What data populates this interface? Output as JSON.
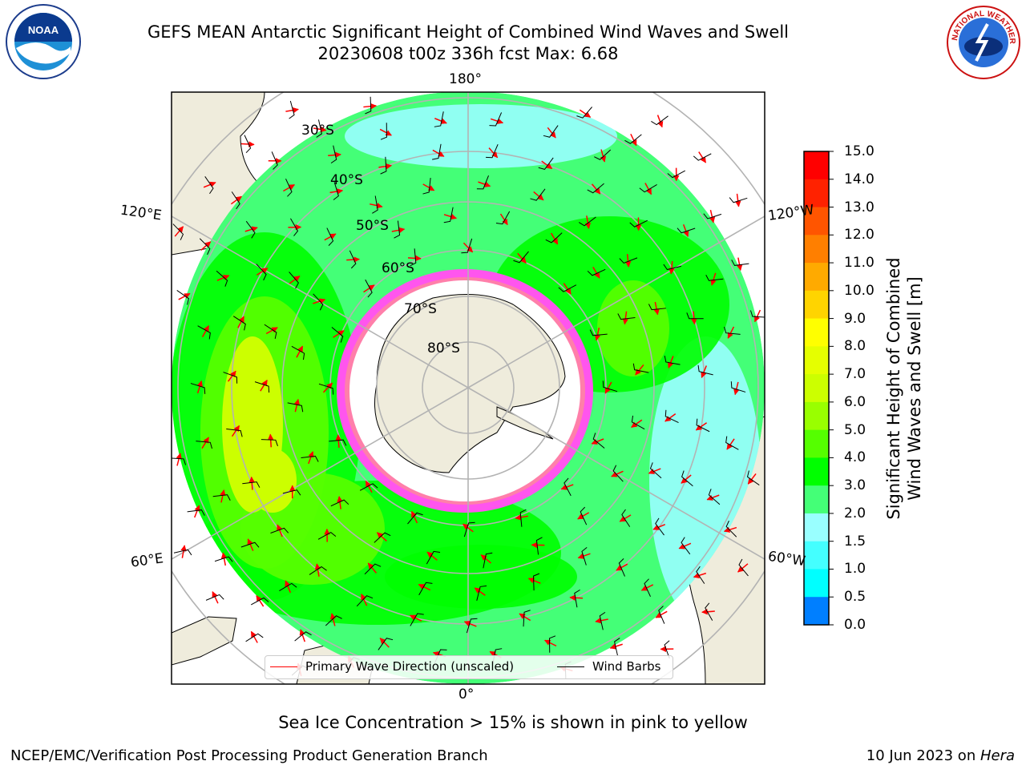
{
  "title": {
    "line1": "GEFS MEAN Antarctic Significant Height of Combined Wind Waves and Swell",
    "line2": "20230608 t00z 336h fcst   Max: 6.68"
  },
  "logos": {
    "left": "NOAA",
    "right": "NATIONAL WEATHER SERVICE"
  },
  "map": {
    "projection": "south-polar-stereographic",
    "lon_labels": {
      "top": "180°",
      "bottom": "0°",
      "left_upper": "120°E",
      "right_upper": "120°W",
      "left_lower": "60°E",
      "right_lower": "60°W"
    },
    "lat_labels": [
      "30°S",
      "40°S",
      "50°S",
      "60°S",
      "70°S",
      "80°S"
    ],
    "colors": {
      "land": "#efecdc",
      "antarctica": "#efecdc",
      "grid": "#b3b3b3",
      "arrows": "#ff0000",
      "barbs": "#000000"
    }
  },
  "legend": {
    "wave_direction": "Primary Wave Direction (unscaled)",
    "wind_barbs": "Wind Barbs"
  },
  "colorbar": {
    "label_line1": "Significant Height of Combined",
    "label_line2": "Wind Waves and Swell [m]",
    "ticks": [
      "15.0",
      "14.0",
      "13.0",
      "12.0",
      "11.0",
      "10.0",
      "9.0",
      "8.0",
      "7.0",
      "6.0",
      "5.0",
      "4.0",
      "3.0",
      "2.0",
      "1.5",
      "1.0",
      "0.5",
      "0.0"
    ],
    "colors": [
      "#ff0000",
      "#ff2200",
      "#ff5500",
      "#ff7f00",
      "#ffaa00",
      "#ffd400",
      "#ffff00",
      "#e5ff00",
      "#ccff00",
      "#99ff00",
      "#55ff00",
      "#00ff00",
      "#44ff77",
      "#99ffff",
      "#44ffff",
      "#00ffff",
      "#007fff",
      "#0000ff"
    ]
  },
  "note": "Sea Ice Concentration > 15% is shown in pink to yellow",
  "footer": {
    "left": "NCEP/EMC/Verification Post Processing Product Generation Branch",
    "right_date": "10 Jun 2023 on ",
    "right_host": "Hera"
  }
}
